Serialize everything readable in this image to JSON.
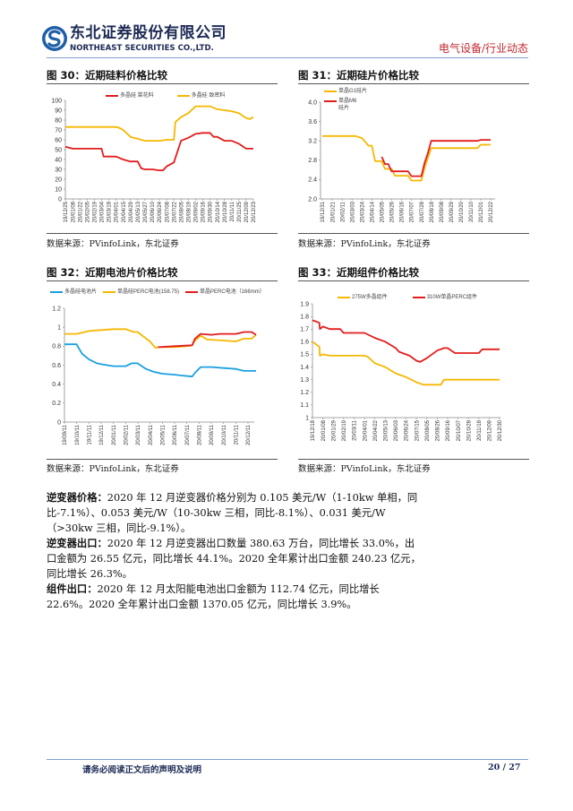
{
  "header": {
    "company_cn": "东北证券股份有限公司",
    "company_en": "NORTHEAST SECURITIES CO.,LTD.",
    "section": "电气设备/行业动态",
    "brand_color": "#1f5fa8"
  },
  "chart_data": [
    {
      "type": "line",
      "title": "图 30：近期硅料价格比较",
      "source": "数据来源：PVinfoLink，东北证券",
      "categories": [
        "19/12/25",
        "20/01/08",
        "20/01/22",
        "20/02/05",
        "20/02/19",
        "20/03/04",
        "20/03/18",
        "20/04/01",
        "20/04/15",
        "20/04/29",
        "20/05/13",
        "20/05/27",
        "20/06/10",
        "20/06/24",
        "20/07/08",
        "20/07/22",
        "20/08/05",
        "20/08/19",
        "20/09/02",
        "20/09/16",
        "20/09/30",
        "20/10/14",
        "20/10/28",
        "20/11/11",
        "20/11/25",
        "20/12/09",
        "20/12/23"
      ],
      "yticks": [
        "0",
        "10",
        "20",
        "30",
        "40",
        "50",
        "60",
        "70",
        "80",
        "90",
        "100"
      ],
      "ylim": [
        0,
        100
      ],
      "series": [
        {
          "name": "多晶硅 菜花料",
          "color": "#e31c1c",
          "points": [
            [
              "19/12/25",
              53
            ],
            [
              "20/01/08",
              51
            ],
            [
              "20/01/22",
              51
            ],
            [
              "20/02/05",
              51
            ],
            [
              "20/02/19",
              51
            ],
            [
              "20/03/04",
              51
            ],
            [
              "20/03/08",
              43
            ],
            [
              "20/04/01",
              43
            ],
            [
              "20/04/15",
              40
            ],
            [
              "20/04/29",
              38
            ],
            [
              "20/05/13",
              38
            ],
            [
              "20/05/20",
              31
            ],
            [
              "20/05/27",
              30
            ],
            [
              "20/06/10",
              30
            ],
            [
              "20/06/24",
              29
            ],
            [
              "20/07/01",
              29
            ],
            [
              "20/07/08",
              33
            ],
            [
              "20/07/22",
              37
            ],
            [
              "20/08/05",
              59
            ],
            [
              "20/08/19",
              62
            ],
            [
              "20/09/02",
              66
            ],
            [
              "20/09/16",
              67
            ],
            [
              "20/09/30",
              67
            ],
            [
              "20/10/07",
              63
            ],
            [
              "20/10/14",
              63
            ],
            [
              "20/10/28",
              59
            ],
            [
              "20/11/11",
              59
            ],
            [
              "20/11/25",
              56
            ],
            [
              "20/12/09",
              51
            ],
            [
              "20/12/23",
              51
            ]
          ]
        },
        {
          "name": "多晶硅 致密料",
          "color": "#f5b800",
          "points": [
            [
              "19/12/25",
              73
            ],
            [
              "20/01/08",
              73
            ],
            [
              "20/02/05",
              73
            ],
            [
              "20/03/04",
              73
            ],
            [
              "20/04/01",
              73
            ],
            [
              "20/04/08",
              72
            ],
            [
              "20/04/15",
              70
            ],
            [
              "20/04/29",
              63
            ],
            [
              "20/05/13",
              61
            ],
            [
              "20/05/27",
              59
            ],
            [
              "20/06/10",
              59
            ],
            [
              "20/06/24",
              59
            ],
            [
              "20/07/08",
              60
            ],
            [
              "20/07/22",
              60
            ],
            [
              "20/07/25",
              78
            ],
            [
              "20/08/05",
              83
            ],
            [
              "20/08/19",
              87
            ],
            [
              "20/09/02",
              94
            ],
            [
              "20/09/16",
              94
            ],
            [
              "20/09/30",
              94
            ],
            [
              "20/10/14",
              91
            ],
            [
              "20/10/28",
              90
            ],
            [
              "20/11/11",
              89
            ],
            [
              "20/11/25",
              87
            ],
            [
              "20/12/09",
              82
            ],
            [
              "20/12/16",
              81
            ],
            [
              "20/12/23",
              83
            ]
          ]
        }
      ]
    },
    {
      "type": "line",
      "title": "图 31：近期硅片价格比较",
      "source": "数据来源：PVinfoLink，东北证券",
      "categories": [
        "19/12/31",
        "20/01/21",
        "20/02/11",
        "20/03/03",
        "20/03/24",
        "20/04/14",
        "20/05/05",
        "20/05/26",
        "20/06/16",
        "20/07/07",
        "20/07/28",
        "20/08/18",
        "20/09/08",
        "20/09/29",
        "20/10/20",
        "20/11/10",
        "20/12/01",
        "20/12/22"
      ],
      "yticks": [
        "2.0",
        "2.4",
        "2.8",
        "3.2",
        "3.6",
        "4.0"
      ],
      "ylim": [
        2.0,
        4.0
      ],
      "series": [
        {
          "name": "单晶G1硅片",
          "color": "#f5b800",
          "points": [
            [
              "19/12/31",
              3.3
            ],
            [
              "20/01/21",
              3.3
            ],
            [
              "20/02/11",
              3.3
            ],
            [
              "20/03/10",
              3.3
            ],
            [
              "20/03/24",
              3.26
            ],
            [
              "20/04/07",
              3.1
            ],
            [
              "20/04/14",
              3.1
            ],
            [
              "20/04/21",
              2.78
            ],
            [
              "20/05/05",
              2.78
            ],
            [
              "20/05/12",
              2.62
            ],
            [
              "20/05/26",
              2.62
            ],
            [
              "20/06/02",
              2.48
            ],
            [
              "20/06/16",
              2.48
            ],
            [
              "20/06/30",
              2.48
            ],
            [
              "20/07/07",
              2.38
            ],
            [
              "20/07/28",
              2.38
            ],
            [
              "20/08/04",
              2.65
            ],
            [
              "20/08/18",
              3.05
            ],
            [
              "20/09/08",
              3.05
            ],
            [
              "20/10/20",
              3.05
            ],
            [
              "20/11/24",
              3.05
            ],
            [
              "20/12/01",
              3.12
            ],
            [
              "20/12/22",
              3.12
            ]
          ]
        },
        {
          "name": "单晶M6硅片",
          "color": "#e31c1c",
          "points": [
            [
              "20/05/05",
              2.87
            ],
            [
              "20/05/12",
              2.72
            ],
            [
              "20/05/19",
              2.72
            ],
            [
              "20/05/26",
              2.57
            ],
            [
              "20/06/16",
              2.57
            ],
            [
              "20/06/30",
              2.57
            ],
            [
              "20/07/07",
              2.47
            ],
            [
              "20/07/28",
              2.47
            ],
            [
              "20/08/04",
              2.75
            ],
            [
              "20/08/11",
              2.95
            ],
            [
              "20/08/18",
              3.2
            ],
            [
              "20/09/08",
              3.2
            ],
            [
              "20/10/20",
              3.2
            ],
            [
              "20/11/24",
              3.2
            ],
            [
              "20/12/01",
              3.22
            ],
            [
              "20/12/22",
              3.22
            ]
          ]
        }
      ]
    },
    {
      "type": "line",
      "title": "图 32：近期电池片价格比较",
      "source": "数据来源：PVinfoLink，东北证券",
      "categories": [
        "19/09/11",
        "19/10/11",
        "19/11/11",
        "19/12/11",
        "20/01/11",
        "20/02/11",
        "20/03/11",
        "20/04/11",
        "20/05/11",
        "20/06/11",
        "20/07/11",
        "20/08/11",
        "20/09/11",
        "20/10/11",
        "20/11/11",
        "20/12/11"
      ],
      "yticks": [
        "0",
        "0.2",
        "0.4",
        "0.6",
        "0.8",
        "1",
        "1.2"
      ],
      "ylim": [
        0,
        1.2
      ],
      "series": [
        {
          "name": "多晶硅电池片",
          "color": "#1aa0e0",
          "points": [
            [
              "19/09/11",
              0.82
            ],
            [
              "19/10/11",
              0.82
            ],
            [
              "19/10/25",
              0.72
            ],
            [
              "19/11/11",
              0.66
            ],
            [
              "19/12/01",
              0.62
            ],
            [
              "19/12/11",
              0.61
            ],
            [
              "20/01/11",
              0.59
            ],
            [
              "20/02/11",
              0.59
            ],
            [
              "20/02/25",
              0.62
            ],
            [
              "20/03/11",
              0.62
            ],
            [
              "20/04/01",
              0.56
            ],
            [
              "20/04/20",
              0.53
            ],
            [
              "20/05/11",
              0.51
            ],
            [
              "20/06/11",
              0.5
            ],
            [
              "20/07/01",
              0.49
            ],
            [
              "20/07/25",
              0.48
            ],
            [
              "20/08/01",
              0.52
            ],
            [
              "20/08/15",
              0.58
            ],
            [
              "20/09/11",
              0.58
            ],
            [
              "20/10/11",
              0.57
            ],
            [
              "20/11/11",
              0.56
            ],
            [
              "20/12/01",
              0.54
            ],
            [
              "20/12/31",
              0.54
            ]
          ]
        },
        {
          "name": "单晶硅PERC电池(158.75)",
          "color": "#f5b800",
          "points": [
            [
              "19/09/11",
              0.93
            ],
            [
              "19/10/11",
              0.93
            ],
            [
              "19/11/11",
              0.96
            ],
            [
              "19/12/11",
              0.97
            ],
            [
              "20/01/11",
              0.98
            ],
            [
              "20/02/11",
              0.98
            ],
            [
              "20/03/01",
              0.95
            ],
            [
              "20/03/11",
              0.95
            ],
            [
              "20/04/11",
              0.85
            ],
            [
              "20/04/25",
              0.78
            ],
            [
              "20/05/01",
              0.79
            ],
            [
              "20/06/11",
              0.79
            ],
            [
              "20/07/11",
              0.8
            ],
            [
              "20/07/25",
              0.81
            ],
            [
              "20/08/01",
              0.86
            ],
            [
              "20/08/15",
              0.91
            ],
            [
              "20/09/01",
              0.87
            ],
            [
              "20/10/11",
              0.86
            ],
            [
              "20/11/11",
              0.85
            ],
            [
              "20/12/01",
              0.88
            ],
            [
              "20/12/20",
              0.88
            ],
            [
              "20/12/31",
              0.92
            ]
          ]
        },
        {
          "name": "单晶PERC电池（166mm）",
          "color": "#e31c1c",
          "points": [
            [
              "20/05/01",
              0.79
            ],
            [
              "20/06/11",
              0.8
            ],
            [
              "20/07/25",
              0.81
            ],
            [
              "20/08/01",
              0.88
            ],
            [
              "20/08/15",
              0.93
            ],
            [
              "20/09/11",
              0.92
            ],
            [
              "20/10/01",
              0.93
            ],
            [
              "20/11/11",
              0.93
            ],
            [
              "20/12/01",
              0.95
            ],
            [
              "20/12/20",
              0.95
            ],
            [
              "20/12/31",
              0.92
            ]
          ]
        }
      ]
    },
    {
      "type": "line",
      "title": "图 33：近期组件价格比较",
      "source": "数据来源：PVinfoLink，东北证券",
      "categories": [
        "19/12/18",
        "20/01/08",
        "20/01/29",
        "20/02/19",
        "20/03/11",
        "20/04/01",
        "20/04/22",
        "20/05/13",
        "20/06/03",
        "20/06/24",
        "20/07/15",
        "20/08/05",
        "20/08/26",
        "20/09/16",
        "20/10/07",
        "20/10/28",
        "20/11/18",
        "20/12/09",
        "20/12/30"
      ],
      "yticks": [
        "1",
        "1.1",
        "1.2",
        "1.3",
        "1.4",
        "1.5",
        "1.6",
        "1.7",
        "1.8",
        "1.9"
      ],
      "ylim": [
        1,
        1.9
      ],
      "series": [
        {
          "name": "275W多晶组件",
          "color": "#f5b800",
          "points": [
            [
              "19/12/18",
              1.6
            ],
            [
              "19/12/25",
              1.58
            ],
            [
              "20/01/01",
              1.56
            ],
            [
              "20/01/02",
              1.49
            ],
            [
              "20/01/08",
              1.5
            ],
            [
              "20/01/22",
              1.49
            ],
            [
              "20/04/01",
              1.49
            ],
            [
              "20/04/08",
              1.48
            ],
            [
              "20/04/22",
              1.43
            ],
            [
              "20/05/13",
              1.4
            ],
            [
              "20/06/03",
              1.35
            ],
            [
              "20/06/24",
              1.32
            ],
            [
              "20/07/15",
              1.28
            ],
            [
              "20/07/29",
              1.26
            ],
            [
              "20/08/26",
              1.26
            ],
            [
              "20/09/02",
              1.26
            ],
            [
              "20/09/09",
              1.3
            ],
            [
              "20/12/30",
              1.3
            ]
          ]
        },
        {
          "name": "310W单晶PERC组件",
          "color": "#e31c1c",
          "points": [
            [
              "19/12/18",
              1.77
            ],
            [
              "20/01/01",
              1.75
            ],
            [
              "20/01/02",
              1.7
            ],
            [
              "20/01/08",
              1.72
            ],
            [
              "20/01/22",
              1.7
            ],
            [
              "20/02/12",
              1.7
            ],
            [
              "20/02/19",
              1.67
            ],
            [
              "20/04/01",
              1.67
            ],
            [
              "20/04/22",
              1.63
            ],
            [
              "20/05/13",
              1.6
            ],
            [
              "20/06/03",
              1.55
            ],
            [
              "20/06/10",
              1.52
            ],
            [
              "20/07/01",
              1.49
            ],
            [
              "20/07/15",
              1.45
            ],
            [
              "20/07/22",
              1.44
            ],
            [
              "20/08/05",
              1.47
            ],
            [
              "20/08/26",
              1.53
            ],
            [
              "20/09/09",
              1.55
            ],
            [
              "20/09/16",
              1.55
            ],
            [
              "20/10/01",
              1.51
            ],
            [
              "20/11/18",
              1.51
            ],
            [
              "20/11/25",
              1.54
            ],
            [
              "20/12/30",
              1.54
            ]
          ]
        }
      ]
    }
  ],
  "body": {
    "paragraphs": [
      {
        "label": "逆变器价格：",
        "text": "2020 年 12 月逆变器价格分别为 0.105 美元/W（1-10kw 单相，同比-7.1%）、0.053 美元/W（10-30kw 三相，同比-8.1%）、0.031 美元/W（>30kw 三相，同比-9.1%）。"
      },
      {
        "label": "逆变器出口：",
        "text": "2020 年 12 月逆变器出口数量 380.63 万台，同比增长 33.0%，出口金额为 26.55 亿元，同比增长 44.1%。2020 全年累计出口金额 240.23 亿元，同比增长 26.3%。"
      },
      {
        "label": "组件出口：",
        "text": "2020 年 12 月太阳能电池出口金额为 112.74 亿元，同比增长 22.6%。2020 全年累计出口金额 1370.05 亿元，同比增长 3.9%。"
      }
    ]
  },
  "footer": {
    "disclaimer": "请务必阅读正文后的声明及说明",
    "page": "20 / 27"
  }
}
